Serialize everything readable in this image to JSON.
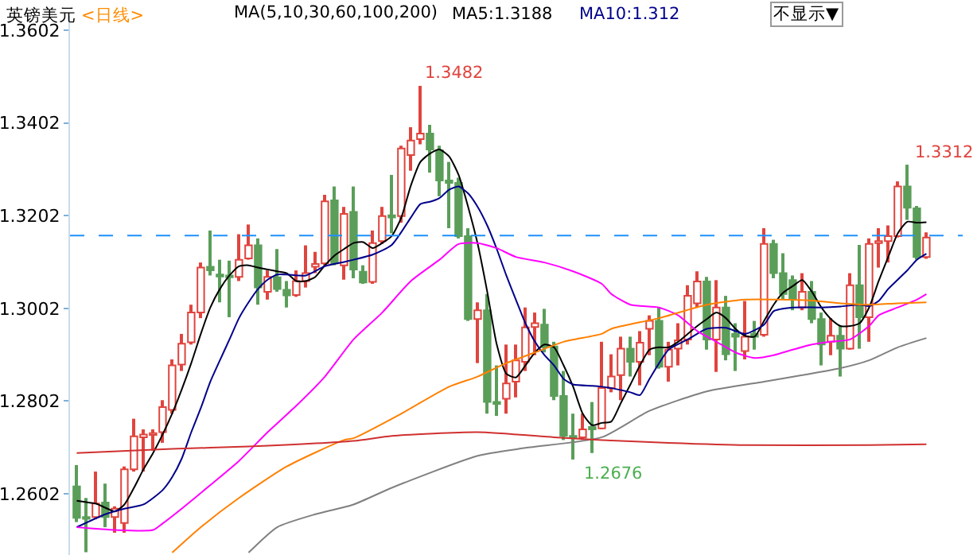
{
  "chart_data": {
    "type": "candlestick",
    "title": "英镑美元",
    "subtitle": "<日线>",
    "annotations": [
      "MA(5,10,30,60,100,200)",
      "不显示▼",
      "1.3482",
      "1.3312",
      "1.2676"
    ],
    "categories": [
      null,
      null,
      null,
      null,
      null,
      null,
      null,
      null,
      null,
      null,
      null,
      null,
      null,
      null,
      null,
      null,
      null,
      null,
      null,
      null,
      null,
      null,
      null,
      null,
      null,
      null,
      null,
      null,
      null,
      null,
      null,
      null,
      null,
      null,
      null,
      null,
      null,
      null,
      null,
      null,
      null,
      null,
      null,
      null,
      null,
      null,
      null,
      null,
      null,
      null,
      null,
      null,
      null,
      null,
      null,
      null,
      null,
      null,
      null,
      null,
      null,
      null,
      null,
      null,
      null,
      null,
      null,
      null,
      null,
      null,
      null,
      null,
      null,
      null,
      null,
      null,
      null,
      null,
      null,
      null,
      null,
      null,
      null,
      null,
      null,
      null,
      null,
      null,
      null,
      null
    ],
    "ohlc": [
      [
        1.2618,
        1.2664,
        1.2541,
        1.255
      ],
      [
        1.2552,
        1.2593,
        1.2476,
        1.2548
      ],
      [
        1.2552,
        1.265,
        1.2547,
        1.2581
      ],
      [
        1.2583,
        1.2624,
        1.253,
        1.2552
      ],
      [
        1.2552,
        1.2575,
        1.2518,
        1.257
      ],
      [
        1.2539,
        1.2661,
        1.2518,
        1.2655
      ],
      [
        1.2655,
        1.2764,
        1.265,
        1.2726
      ],
      [
        1.2724,
        1.2741,
        1.265,
        1.273
      ],
      [
        1.2729,
        1.2741,
        1.2695,
        1.2733
      ],
      [
        1.2735,
        1.2804,
        1.2712,
        1.2789
      ],
      [
        1.2783,
        1.2892,
        1.2775,
        1.2879
      ],
      [
        1.2881,
        1.2947,
        1.2867,
        1.2926
      ],
      [
        1.2929,
        1.301,
        1.2924,
        1.2993
      ],
      [
        1.2993,
        1.3101,
        1.2981,
        1.309
      ],
      [
        1.3092,
        1.317,
        1.3073,
        1.3084
      ],
      [
        1.3075,
        1.3107,
        1.3015,
        1.3071
      ],
      [
        1.3073,
        1.3105,
        1.2983,
        1.3069
      ],
      [
        1.307,
        1.3162,
        1.3061,
        1.3107
      ],
      [
        1.311,
        1.3183,
        1.3107,
        1.3138
      ],
      [
        1.3138,
        1.3153,
        1.301,
        1.3047
      ],
      [
        1.3038,
        1.3084,
        1.3021,
        1.307
      ],
      [
        1.3069,
        1.313,
        1.3038,
        1.3044
      ],
      [
        1.3042,
        1.3061,
        1.3004,
        1.303
      ],
      [
        1.3031,
        1.3084,
        1.3027,
        1.3061
      ],
      [
        1.3061,
        1.3138,
        1.3047,
        1.3078
      ],
      [
        1.3092,
        1.3124,
        1.3078,
        1.3098
      ],
      [
        1.3099,
        1.3247,
        1.3095,
        1.3233
      ],
      [
        1.3235,
        1.3265,
        1.3095,
        1.3099
      ],
      [
        1.3095,
        1.3221,
        1.3064,
        1.3206
      ],
      [
        1.321,
        1.3265,
        1.3067,
        1.3086
      ],
      [
        1.3081,
        1.3095,
        1.3055,
        1.3058
      ],
      [
        1.3059,
        1.317,
        1.3055,
        1.3143
      ],
      [
        1.3147,
        1.3221,
        1.3141,
        1.3201
      ],
      [
        1.3203,
        1.329,
        1.3164,
        1.3198
      ],
      [
        1.3201,
        1.3353,
        1.3187,
        1.3347
      ],
      [
        1.3333,
        1.3393,
        1.3299,
        1.3364
      ],
      [
        1.3367,
        1.3482,
        1.3356,
        1.3379
      ],
      [
        1.3379,
        1.3398,
        1.3295,
        1.3345
      ],
      [
        1.3343,
        1.3353,
        1.3244,
        1.3278
      ],
      [
        1.3278,
        1.3318,
        1.3175,
        1.3273
      ],
      [
        1.3273,
        1.3284,
        1.3153,
        1.3158
      ],
      [
        1.3158,
        1.3175,
        1.2975,
        1.2979
      ],
      [
        1.2979,
        1.3015,
        1.2884,
        1.2998
      ],
      [
        1.2998,
        1.3033,
        1.2775,
        1.28
      ],
      [
        1.28,
        1.2879,
        1.277,
        1.2796
      ],
      [
        1.2807,
        1.2924,
        1.2775,
        1.284
      ],
      [
        1.2844,
        1.2924,
        1.281,
        1.289
      ],
      [
        1.2887,
        1.3004,
        1.2867,
        1.2961
      ],
      [
        1.2962,
        1.2993,
        1.2901,
        1.297
      ],
      [
        1.2967,
        1.3001,
        1.2907,
        1.2918
      ],
      [
        1.292,
        1.293,
        1.2804,
        1.2813
      ],
      [
        1.2813,
        1.2867,
        1.2718,
        1.2727
      ],
      [
        1.2727,
        1.2775,
        1.2676,
        1.2723
      ],
      [
        1.2724,
        1.2775,
        1.2718,
        1.2741
      ],
      [
        1.2746,
        1.28,
        1.269,
        1.2741
      ],
      [
        1.2743,
        1.293,
        1.2741,
        1.283
      ],
      [
        1.283,
        1.2903,
        1.2821,
        1.2855
      ],
      [
        1.2858,
        1.2941,
        1.2804,
        1.2915
      ],
      [
        1.2915,
        1.2941,
        1.2855,
        1.2887
      ],
      [
        1.2887,
        1.2953,
        1.2836,
        1.2928
      ],
      [
        1.2958,
        1.2987,
        1.2901,
        1.2975
      ],
      [
        1.2975,
        1.3004,
        1.2872,
        1.2876
      ],
      [
        1.2876,
        1.293,
        1.2844,
        1.2913
      ],
      [
        1.2915,
        1.297,
        1.2879,
        1.2933
      ],
      [
        1.2935,
        1.3052,
        1.2924,
        1.3029
      ],
      [
        1.3013,
        1.3082,
        1.3004,
        1.306
      ],
      [
        1.306,
        1.307,
        1.2913,
        1.2935
      ],
      [
        1.2935,
        1.3063,
        1.2865,
        1.3004
      ],
      [
        1.3004,
        1.3029,
        1.289,
        1.2903
      ],
      [
        1.2947,
        1.297,
        1.2867,
        1.2941
      ],
      [
        1.291,
        1.3018,
        1.2892,
        1.2941
      ],
      [
        1.2947,
        1.2975,
        1.2913,
        1.2941
      ],
      [
        1.2945,
        1.3175,
        1.2941,
        1.3141
      ],
      [
        1.3141,
        1.315,
        1.3067,
        1.3078
      ],
      [
        1.3078,
        1.3121,
        1.3021,
        1.3033
      ],
      [
        1.3063,
        1.3073,
        1.2998,
        1.3021
      ],
      [
        1.3004,
        1.3078,
        1.2998,
        1.3038
      ],
      [
        1.3038,
        1.3061,
        1.297,
        1.2979
      ],
      [
        1.2979,
        1.2993,
        1.2879,
        1.2924
      ],
      [
        1.293,
        1.2981,
        1.2901,
        1.2943
      ],
      [
        1.2943,
        1.2964,
        1.2855,
        1.2915
      ],
      [
        1.2915,
        1.3078,
        1.2913,
        1.3052
      ],
      [
        1.3052,
        1.3139,
        1.2915,
        1.2983
      ],
      [
        1.2983,
        1.3153,
        1.293,
        1.3141
      ],
      [
        1.3143,
        1.3175,
        1.309,
        1.3147
      ],
      [
        1.3147,
        1.3181,
        1.3101,
        1.3158
      ],
      [
        1.3158,
        1.3276,
        1.3155,
        1.3265
      ],
      [
        1.3265,
        1.3312,
        1.3193,
        1.3219
      ],
      [
        1.3218,
        1.3223,
        1.3107,
        1.3113
      ],
      [
        1.3113,
        1.3166,
        1.3109,
        1.3155
      ]
    ],
    "series": [
      {
        "name": "MA5:1.3188",
        "type": "line",
        "color": "#000000",
        "values": [
          1.2587,
          1.2584,
          1.2581,
          1.2572,
          1.2564,
          1.2579,
          1.2615,
          1.2655,
          1.269,
          1.273,
          1.2775,
          1.2827,
          1.2884,
          1.2947,
          1.3004,
          1.3044,
          1.3073,
          1.3093,
          1.3095,
          1.309,
          1.3086,
          1.3082,
          1.3078,
          1.3061,
          1.3061,
          1.307,
          1.3095,
          1.3116,
          1.313,
          1.3143,
          1.3145,
          1.3132,
          1.3143,
          1.3158,
          1.3198,
          1.3267,
          1.3318,
          1.3336,
          1.3345,
          1.333,
          1.329,
          1.3221,
          1.3141,
          1.3038,
          1.2924,
          1.2861,
          1.2853,
          1.2879,
          1.2907,
          1.2924,
          1.2918,
          1.2879,
          1.2833,
          1.2775,
          1.275,
          1.2755,
          1.2758,
          1.2798,
          1.2838,
          1.2879,
          1.2913,
          1.2918,
          1.2918,
          1.293,
          1.2947,
          1.2964,
          1.2979,
          1.2993,
          1.2981,
          1.2958,
          1.2943,
          1.2941,
          1.2975,
          1.301,
          1.3036,
          1.305,
          1.3063,
          1.3038,
          1.3004,
          1.2979,
          1.2964,
          1.2964,
          1.297,
          1.3004,
          1.3061,
          1.3113,
          1.3164,
          1.3189,
          1.3187,
          1.3188
        ]
      },
      {
        "name": "MA10:1.312",
        "type": "line",
        "color": "#00008b",
        "values": [
          1.253,
          null,
          null,
          1.2558,
          null,
          1.257,
          null,
          1.2579,
          null,
          1.261,
          1.2638,
          1.2678,
          1.2735,
          1.2787,
          1.2844,
          1.289,
          1.2935,
          1.2981,
          1.3015,
          1.3044,
          1.3064,
          1.3075,
          1.3075,
          null,
          1.3073,
          null,
          1.3093,
          null,
          1.3102,
          1.3107,
          null,
          1.3118,
          null,
          1.3139,
          null,
          1.3198,
          1.3227,
          1.3232,
          1.324,
          1.3258,
          1.3265,
          1.325,
          1.3221,
          1.3181,
          1.313,
          1.3073,
          1.3021,
          1.297,
          1.293,
          1.2901,
          1.2879,
          1.285,
          1.2838,
          null,
          1.2835,
          1.2833,
          1.283,
          null,
          1.2821,
          1.2815,
          1.285,
          null,
          1.2913,
          null,
          1.2935,
          null,
          1.2958,
          null,
          1.296,
          null,
          1.2947,
          null,
          1.2967,
          1.2996,
          null,
          1.3004,
          null,
          null,
          1.3004,
          null,
          1.3006,
          null,
          1.301,
          1.3007,
          1.3018,
          1.3044,
          1.3064,
          1.3084,
          1.3107,
          1.312
        ]
      },
      {
        "type": "line",
        "color": "#ff00ff",
        "values": [
          1.253,
          null,
          null,
          null,
          1.2524,
          null,
          null,
          null,
          1.2524,
          1.2538,
          null,
          1.257,
          null,
          null,
          1.2621,
          null,
          null,
          1.2673,
          null,
          null,
          1.2735,
          null,
          null,
          1.2792,
          null,
          null,
          1.2855,
          null,
          null,
          1.2935,
          null,
          null,
          1.2993,
          null,
          null,
          1.3061,
          null,
          null,
          1.3107,
          null,
          1.3141,
          null,
          1.3143,
          null,
          1.3132,
          null,
          1.3113,
          null,
          null,
          1.3101,
          null,
          null,
          1.3082,
          null,
          null,
          1.3055,
          1.3033,
          null,
          1.301,
          null,
          null,
          1.3004,
          null,
          1.2987,
          null,
          1.2953,
          null,
          1.293,
          null,
          1.2907,
          null,
          1.2895,
          null,
          1.2901,
          null,
          1.2913,
          null,
          1.2924,
          null,
          1.293,
          null,
          1.2935,
          null,
          1.2964,
          1.2987,
          null,
          1.3004,
          null,
          1.3021,
          1.3033
        ]
      },
      {
        "type": "line",
        "color": "#ff8000",
        "values": [
          null,
          null,
          null,
          null,
          null,
          null,
          null,
          null,
          null,
          null,
          1.2475,
          null,
          null,
          1.253,
          null,
          null,
          null,
          1.2593,
          null,
          null,
          null,
          null,
          1.2661,
          null,
          null,
          null,
          null,
          null,
          1.2718,
          1.2722,
          null,
          null,
          null,
          null,
          1.2775,
          null,
          null,
          null,
          null,
          1.2833,
          null,
          null,
          1.2855,
          null,
          null,
          1.2884,
          null,
          null,
          1.2907,
          null,
          null,
          1.293,
          null,
          null,
          null,
          1.2947,
          1.2958,
          null,
          null,
          null,
          null,
          1.2981,
          null,
          null,
          null,
          null,
          1.301,
          null,
          null,
          null,
          1.3021,
          null,
          null,
          null,
          null,
          null,
          null,
          1.3019,
          null,
          null,
          1.3013,
          null,
          null,
          1.301,
          null,
          null,
          1.3013,
          null,
          null,
          1.3015
        ]
      },
      {
        "type": "line",
        "color": "#808080",
        "values": [
          null,
          null,
          null,
          null,
          null,
          null,
          null,
          null,
          null,
          null,
          null,
          null,
          null,
          null,
          null,
          null,
          null,
          null,
          1.2475,
          null,
          null,
          1.253,
          null,
          null,
          null,
          1.2558,
          null,
          null,
          null,
          1.2579,
          null,
          null,
          null,
          1.2615,
          null,
          null,
          null,
          null,
          null,
          null,
          null,
          null,
          1.2684,
          null,
          null,
          null,
          null,
          1.2701,
          null,
          null,
          null,
          null,
          null,
          null,
          null,
          1.2724,
          null,
          null,
          null,
          null,
          1.2781,
          null,
          null,
          null,
          null,
          null,
          1.2823,
          null,
          null,
          null,
          null,
          null,
          1.2844,
          null,
          null,
          null,
          1.2858,
          null,
          null,
          null,
          1.2873,
          null,
          null,
          1.289,
          null,
          null,
          1.2918,
          null,
          null,
          1.2938
        ]
      },
      {
        "type": "line",
        "color": "#d03030",
        "values": [
          1.269,
          null,
          null,
          null,
          null,
          null,
          null,
          null,
          null,
          null,
          1.2699,
          null,
          null,
          null,
          null,
          null,
          null,
          null,
          1.2704,
          null,
          null,
          null,
          null,
          null,
          null,
          null,
          null,
          null,
          null,
          1.2716,
          null,
          null,
          null,
          1.2727,
          null,
          null,
          null,
          null,
          null,
          null,
          null,
          null,
          1.2735,
          null,
          null,
          null,
          null,
          null,
          null,
          null,
          1.2724,
          null,
          null,
          null,
          null,
          1.2718,
          null,
          null,
          null,
          null,
          null,
          null,
          1.2712,
          null,
          null,
          null,
          null,
          null,
          null,
          null,
          1.2707,
          null,
          null,
          null,
          null,
          null,
          null,
          null,
          null,
          null,
          null,
          null,
          null,
          1.2707,
          null,
          null,
          null,
          null,
          null,
          1.2709
        ]
      }
    ],
    "ylim": [
      1.247,
      1.3633
    ],
    "yticks": [
      1.3602,
      1.3402,
      1.3202,
      1.3002,
      1.2802,
      1.2602
    ],
    "ref_lines": [
      {
        "axis": "y",
        "value": 1.3159,
        "color": "#1e90ff",
        "line_style": "dashed"
      }
    ],
    "legend": false,
    "tick_labels": "y",
    "marker": "none"
  }
}
